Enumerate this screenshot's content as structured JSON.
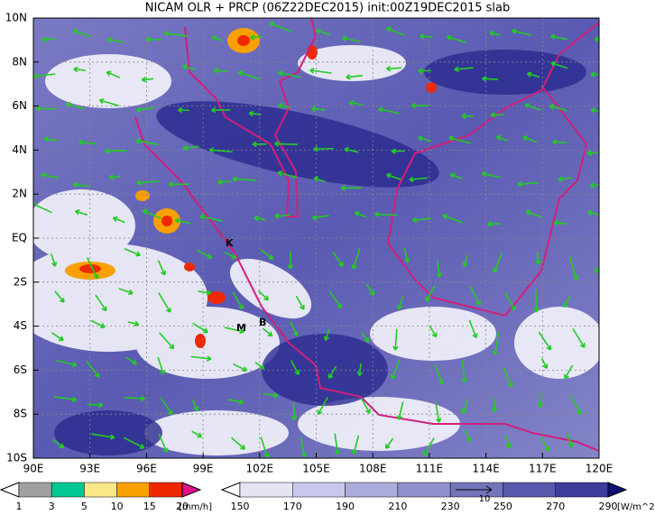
{
  "title": "NICAM OLR + PRCP (06Z22DEC2015) init:00Z19DEC2015 slab",
  "lat_labels": [
    "10N",
    "8N",
    "6N",
    "4N",
    "2N",
    "EQ",
    "2S",
    "4S",
    "6S",
    "8S",
    "10S"
  ],
  "lon_labels": [
    "90E",
    "93E",
    "96E",
    "99E",
    "102E",
    "105E",
    "108E",
    "111E",
    "114E",
    "117E",
    "120E"
  ],
  "places": [
    "K",
    "M",
    "B"
  ],
  "precip_legend": {
    "labels": [
      "1",
      "3",
      "5",
      "10",
      "15",
      "20"
    ],
    "unit": "[mm/h]",
    "colors": [
      "#ffffff",
      "#a0a0a0",
      "#00c890",
      "#f8e888",
      "#f8a000",
      "#f02800",
      "#e0108c"
    ]
  },
  "olr_legend": {
    "labels": [
      "150",
      "170",
      "190",
      "210",
      "230",
      "250",
      "270",
      "290"
    ],
    "unit": "[W/m^2]",
    "colors": [
      "#ffffff",
      "#e4e4f4",
      "#c8c8ec",
      "#acacdc",
      "#9090cc",
      "#7474bc",
      "#5858ac",
      "#3c3c9c",
      "#101078"
    ],
    "vector_label": "10"
  }
}
